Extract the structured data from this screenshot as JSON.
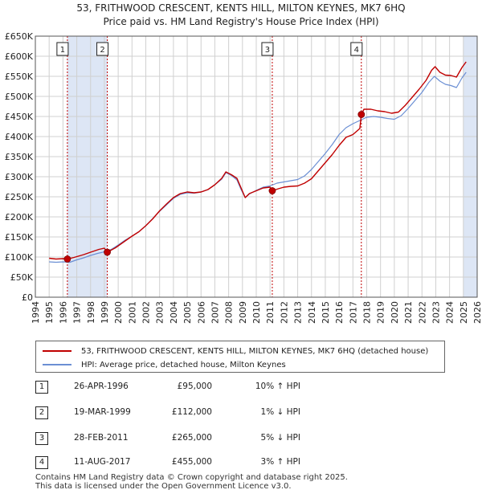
{
  "title_line1": "53, FRITHWOOD CRESCENT, KENTS HILL, MILTON KEYNES, MK7 6HQ",
  "title_line2": "Price paid vs. HM Land Registry's House Price Index (HPI)",
  "colors": {
    "property": "#c00000",
    "hpi": "#6b8fd4",
    "shade": "#dde6f5",
    "grid": "#d0d0d0"
  },
  "chart_data": {
    "type": "line",
    "xlim": [
      1994,
      2026
    ],
    "ylim": [
      0,
      650000
    ],
    "x_ticks": [
      "1994",
      "1995",
      "1996",
      "1997",
      "1998",
      "1999",
      "2000",
      "2001",
      "2002",
      "2003",
      "2004",
      "2005",
      "2006",
      "2007",
      "2008",
      "2009",
      "2010",
      "2011",
      "2012",
      "2013",
      "2014",
      "2015",
      "2016",
      "2017",
      "2018",
      "2019",
      "2020",
      "2021",
      "2022",
      "2023",
      "2024",
      "2025",
      "2026"
    ],
    "y_ticks": [
      {
        "value": 0,
        "label": "£0"
      },
      {
        "value": 50000,
        "label": "£50K"
      },
      {
        "value": 100000,
        "label": "£100K"
      },
      {
        "value": 150000,
        "label": "£150K"
      },
      {
        "value": 200000,
        "label": "£200K"
      },
      {
        "value": 250000,
        "label": "£250K"
      },
      {
        "value": 300000,
        "label": "£300K"
      },
      {
        "value": 350000,
        "label": "£350K"
      },
      {
        "value": 400000,
        "label": "£400K"
      },
      {
        "value": 450000,
        "label": "£450K"
      },
      {
        "value": 500000,
        "label": "£500K"
      },
      {
        "value": 550000,
        "label": "£550K"
      },
      {
        "value": 600000,
        "label": "£600K"
      },
      {
        "value": 650000,
        "label": "£650K"
      }
    ],
    "shaded_ranges": [
      [
        1996.32,
        1999.21
      ],
      [
        2025.0,
        2026.0
      ]
    ],
    "series": [
      {
        "name": "53, FRITHWOOD CRESCENT, KENTS HILL, MILTON KEYNES, MK7 6HQ (detached house)",
        "color": "#c00000",
        "points": [
          [
            1995.0,
            97000
          ],
          [
            1995.5,
            95000
          ],
          [
            1996.0,
            96000
          ],
          [
            1996.32,
            95000
          ],
          [
            1996.8,
            99000
          ],
          [
            1997.5,
            106000
          ],
          [
            1998.0,
            112000
          ],
          [
            1998.6,
            119000
          ],
          [
            1999.0,
            122000
          ],
          [
            1999.21,
            112000
          ],
          [
            1999.8,
            123000
          ],
          [
            2000.5,
            140000
          ],
          [
            2001.0,
            152000
          ],
          [
            2001.5,
            163000
          ],
          [
            2002.0,
            178000
          ],
          [
            2002.5,
            195000
          ],
          [
            2003.0,
            215000
          ],
          [
            2003.5,
            232000
          ],
          [
            2004.0,
            248000
          ],
          [
            2004.5,
            258000
          ],
          [
            2005.0,
            262000
          ],
          [
            2005.5,
            260000
          ],
          [
            2006.0,
            262000
          ],
          [
            2006.5,
            268000
          ],
          [
            2007.0,
            280000
          ],
          [
            2007.5,
            296000
          ],
          [
            2007.8,
            312000
          ],
          [
            2008.2,
            305000
          ],
          [
            2008.6,
            296000
          ],
          [
            2008.9,
            272000
          ],
          [
            2009.2,
            248000
          ],
          [
            2009.5,
            258000
          ],
          [
            2010.0,
            265000
          ],
          [
            2010.5,
            272000
          ],
          [
            2011.0,
            274000
          ],
          [
            2011.16,
            265000
          ],
          [
            2011.6,
            270000
          ],
          [
            2012.0,
            274000
          ],
          [
            2012.5,
            276000
          ],
          [
            2013.0,
            277000
          ],
          [
            2013.5,
            284000
          ],
          [
            2014.0,
            295000
          ],
          [
            2014.5,
            315000
          ],
          [
            2015.0,
            335000
          ],
          [
            2015.5,
            355000
          ],
          [
            2016.0,
            378000
          ],
          [
            2016.5,
            398000
          ],
          [
            2017.0,
            405000
          ],
          [
            2017.5,
            420000
          ],
          [
            2017.61,
            455000
          ],
          [
            2017.8,
            468000
          ],
          [
            2018.3,
            468000
          ],
          [
            2018.8,
            464000
          ],
          [
            2019.3,
            462000
          ],
          [
            2019.8,
            458000
          ],
          [
            2020.3,
            461000
          ],
          [
            2020.8,
            478000
          ],
          [
            2021.3,
            498000
          ],
          [
            2021.8,
            518000
          ],
          [
            2022.3,
            540000
          ],
          [
            2022.7,
            565000
          ],
          [
            2022.95,
            574000
          ],
          [
            2023.3,
            560000
          ],
          [
            2023.7,
            553000
          ],
          [
            2024.1,
            552000
          ],
          [
            2024.5,
            548000
          ],
          [
            2024.9,
            572000
          ],
          [
            2025.2,
            586000
          ]
        ]
      },
      {
        "name": "HPI: Average price, detached house, Milton Keynes",
        "color": "#6b8fd4",
        "points": [
          [
            1995.0,
            88000
          ],
          [
            1995.5,
            87000
          ],
          [
            1996.0,
            88000
          ],
          [
            1996.5,
            87000
          ],
          [
            1997.0,
            93000
          ],
          [
            1997.5,
            98000
          ],
          [
            1998.0,
            104000
          ],
          [
            1998.5,
            109000
          ],
          [
            1999.0,
            113000
          ],
          [
            1999.5,
            119000
          ],
          [
            2000.0,
            130000
          ],
          [
            2000.5,
            142000
          ],
          [
            2001.0,
            152000
          ],
          [
            2001.5,
            163000
          ],
          [
            2002.0,
            178000
          ],
          [
            2002.5,
            196000
          ],
          [
            2003.0,
            214000
          ],
          [
            2003.5,
            230000
          ],
          [
            2004.0,
            246000
          ],
          [
            2004.5,
            256000
          ],
          [
            2005.0,
            260000
          ],
          [
            2005.5,
            259000
          ],
          [
            2006.0,
            262000
          ],
          [
            2006.5,
            268000
          ],
          [
            2007.0,
            280000
          ],
          [
            2007.5,
            294000
          ],
          [
            2007.8,
            310000
          ],
          [
            2008.2,
            303000
          ],
          [
            2008.6,
            292000
          ],
          [
            2008.9,
            268000
          ],
          [
            2009.2,
            248000
          ],
          [
            2009.5,
            257000
          ],
          [
            2010.0,
            266000
          ],
          [
            2010.5,
            274000
          ],
          [
            2011.0,
            277000
          ],
          [
            2011.5,
            284000
          ],
          [
            2012.0,
            287000
          ],
          [
            2012.5,
            290000
          ],
          [
            2013.0,
            293000
          ],
          [
            2013.5,
            302000
          ],
          [
            2014.0,
            318000
          ],
          [
            2014.5,
            338000
          ],
          [
            2015.0,
            358000
          ],
          [
            2015.5,
            380000
          ],
          [
            2016.0,
            405000
          ],
          [
            2016.5,
            422000
          ],
          [
            2017.0,
            432000
          ],
          [
            2017.5,
            440000
          ],
          [
            2018.0,
            448000
          ],
          [
            2018.5,
            450000
          ],
          [
            2019.0,
            448000
          ],
          [
            2019.5,
            445000
          ],
          [
            2020.0,
            443000
          ],
          [
            2020.5,
            452000
          ],
          [
            2021.0,
            470000
          ],
          [
            2021.5,
            490000
          ],
          [
            2022.0,
            510000
          ],
          [
            2022.5,
            535000
          ],
          [
            2022.9,
            550000
          ],
          [
            2023.3,
            538000
          ],
          [
            2023.7,
            530000
          ],
          [
            2024.1,
            527000
          ],
          [
            2024.5,
            522000
          ],
          [
            2024.9,
            546000
          ],
          [
            2025.2,
            560000
          ]
        ]
      }
    ],
    "sale_markers": [
      {
        "label": "1",
        "x": 1996.32,
        "y": 95000
      },
      {
        "label": "2",
        "x": 1999.21,
        "y": 112000
      },
      {
        "label": "3",
        "x": 2011.16,
        "y": 265000
      },
      {
        "label": "4",
        "x": 2017.61,
        "y": 455000
      }
    ]
  },
  "legend": {
    "property_label": "53, FRITHWOOD CRESCENT, KENTS HILL, MILTON KEYNES, MK7 6HQ (detached house)",
    "hpi_label": "HPI: Average price, detached house, Milton Keynes"
  },
  "sales": [
    {
      "num": "1",
      "date": "26-APR-1996",
      "price": "£95,000",
      "hpi": "10% ↑ HPI"
    },
    {
      "num": "2",
      "date": "19-MAR-1999",
      "price": "£112,000",
      "hpi": "1% ↓ HPI"
    },
    {
      "num": "3",
      "date": "28-FEB-2011",
      "price": "£265,000",
      "hpi": "5% ↓ HPI"
    },
    {
      "num": "4",
      "date": "11-AUG-2017",
      "price": "£455,000",
      "hpi": "3% ↑ HPI"
    }
  ],
  "footer_line1": "Contains HM Land Registry data © Crown copyright and database right 2025.",
  "footer_line2": "This data is licensed under the Open Government Licence v3.0."
}
